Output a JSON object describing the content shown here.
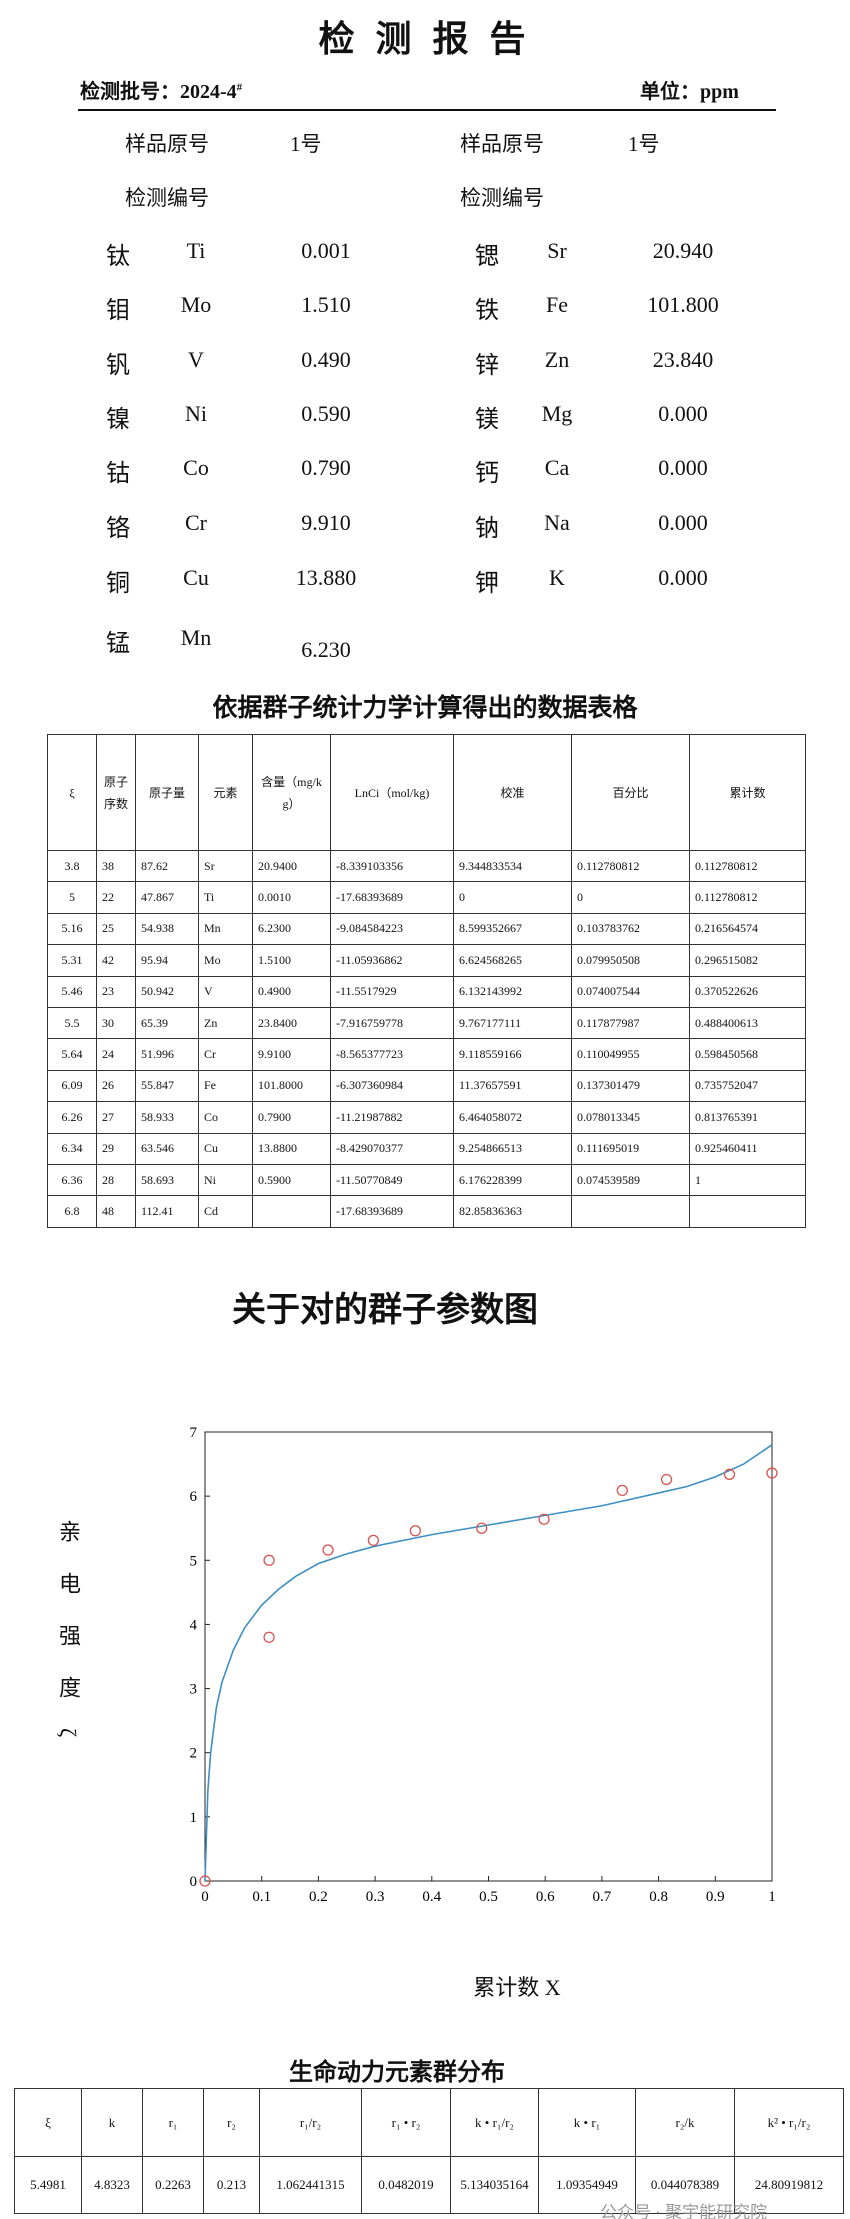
{
  "header": {
    "title": "检 测 报 告",
    "batch_label": "检测批号：",
    "batch_no": "2024-4",
    "batch_sup": "#",
    "unit": "单位：ppm"
  },
  "samples": {
    "left": [
      "样品原号",
      "1号",
      "检测编号"
    ],
    "right": [
      "样品原号",
      "1号",
      "检测编号"
    ]
  },
  "elements": {
    "left": [
      [
        "钛",
        "Ti",
        "0.001"
      ],
      [
        "钼",
        "Mo",
        "1.510"
      ],
      [
        "钒",
        "V",
        "0.490"
      ],
      [
        "镍",
        "Ni",
        "0.590"
      ],
      [
        "钴",
        "Co",
        "0.790"
      ],
      [
        "铬",
        "Cr",
        "9.910"
      ],
      [
        "铜",
        "Cu",
        "13.880"
      ],
      [
        "锰",
        "Mn",
        "6.230"
      ]
    ],
    "right": [
      [
        "锶",
        "Sr",
        "20.940"
      ],
      [
        "铁",
        "Fe",
        "101.800"
      ],
      [
        "锌",
        "Zn",
        "23.840"
      ],
      [
        "镁",
        "Mg",
        "0.000"
      ],
      [
        "钙",
        "Ca",
        "0.000"
      ],
      [
        "钠",
        "Na",
        "0.000"
      ],
      [
        "钾",
        "K",
        "0.000"
      ]
    ]
  },
  "table1": {
    "title": "依据群子统计力学计算得出的数据表格",
    "headers": [
      "ξ",
      "原子序数",
      "原子量",
      "元素",
      "含量（mg/kg）",
      "LnCi（mol/kg)",
      "校准",
      "百分比",
      "累计数"
    ],
    "rows": [
      [
        "3.8",
        "38",
        "87.62",
        "Sr",
        "20.9400",
        "-8.339103356",
        "9.344833534",
        "0.112780812",
        "0.112780812"
      ],
      [
        "5",
        "22",
        "47.867",
        "Ti",
        "0.0010",
        "-17.68393689",
        "0",
        "0",
        "0.112780812"
      ],
      [
        "5.16",
        "25",
        "54.938",
        "Mn",
        "6.2300",
        "-9.084584223",
        "8.599352667",
        "0.103783762",
        "0.216564574"
      ],
      [
        "5.31",
        "42",
        "95.94",
        "Mo",
        "1.5100",
        "-11.05936862",
        "6.624568265",
        "0.079950508",
        "0.296515082"
      ],
      [
        "5.46",
        "23",
        "50.942",
        "V",
        "0.4900",
        "-11.5517929",
        "6.132143992",
        "0.074007544",
        "0.370522626"
      ],
      [
        "5.5",
        "30",
        "65.39",
        "Zn",
        "23.8400",
        "-7.916759778",
        "9.767177111",
        "0.117877987",
        "0.488400613"
      ],
      [
        "5.64",
        "24",
        "51.996",
        "Cr",
        "9.9100",
        "-8.565377723",
        "9.118559166",
        "0.110049955",
        "0.598450568"
      ],
      [
        "6.09",
        "26",
        "55.847",
        "Fe",
        "101.8000",
        "-6.307360984",
        "11.37657591",
        "0.137301479",
        "0.735752047"
      ],
      [
        "6.26",
        "27",
        "58.933",
        "Co",
        "0.7900",
        "-11.21987882",
        "6.464058072",
        "0.078013345",
        "0.813765391"
      ],
      [
        "6.34",
        "29",
        "63.546",
        "Cu",
        "13.8800",
        "-8.429070377",
        "9.254866513",
        "0.111695019",
        "0.925460411"
      ],
      [
        "6.36",
        "28",
        "58.693",
        "Ni",
        "0.5900",
        "-11.50770849",
        "6.176228399",
        "0.074539589",
        "1"
      ],
      [
        "6.8",
        "48",
        "112.41",
        "Cd",
        null,
        "-17.68393689",
        "82.85836363",
        null,
        null
      ]
    ]
  },
  "chart_data": {
    "type": "scatter",
    "title": "关于对的群子参数图",
    "y_label": "亲电强度ζ",
    "x_label": "累计数 X",
    "points": {
      "color": "#d9534f",
      "x": [
        0,
        0.113,
        0.113,
        0.217,
        0.297,
        0.371,
        0.488,
        0.598,
        0.736,
        0.814,
        0.925,
        1
      ],
      "y": [
        0,
        3.8,
        5,
        5.16,
        5.31,
        5.46,
        5.5,
        5.64,
        6.09,
        6.26,
        6.34,
        6.36
      ]
    },
    "curve": {
      "color": "#3d8fc4",
      "x": [
        0,
        0.005,
        0.01,
        0.02,
        0.03,
        0.05,
        0.07,
        0.1,
        0.13,
        0.16,
        0.2,
        0.25,
        0.3,
        0.4,
        0.5,
        0.6,
        0.7,
        0.8,
        0.85,
        0.9,
        0.95,
        1
      ],
      "y": [
        0,
        1.4,
        2.0,
        2.7,
        3.1,
        3.6,
        3.95,
        4.3,
        4.55,
        4.75,
        4.95,
        5.1,
        5.22,
        5.4,
        5.55,
        5.7,
        5.85,
        6.05,
        6.15,
        6.3,
        6.5,
        6.8
      ]
    },
    "xlim": [
      0,
      1
    ],
    "xticks": [
      0,
      0.1,
      0.2,
      0.3,
      0.4,
      0.5,
      0.6,
      0.7,
      0.8,
      0.9,
      1
    ],
    "ylim": [
      0,
      7
    ],
    "yticks": [
      0,
      1,
      2,
      3,
      4,
      5,
      6,
      7
    ]
  },
  "table2": {
    "title": "生命动力元素群分布",
    "headers": [
      "ξ",
      "k",
      "r₁",
      "r₂",
      "r₁/r₂",
      "r₁ • r₂",
      "k • r₁/r₂",
      "k • r₁",
      "r₂/k",
      "k² • r₁/r₂"
    ],
    "rows": [
      [
        "5.4981",
        "4.8323",
        "0.2263",
        "0.213",
        "1.062441315",
        "0.0482019",
        "5.134035164",
        "1.09354949",
        "0.044078389",
        "24.80919812"
      ]
    ]
  },
  "watermark": "公众号 · 聚宇能研究院"
}
